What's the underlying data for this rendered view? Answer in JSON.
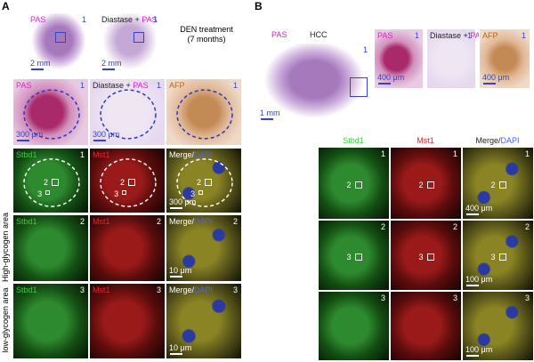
{
  "panel_a": {
    "letter": "A",
    "overview": [
      {
        "stain": "PAS",
        "color": "#e020c8",
        "region": "1",
        "scale": "2 mm"
      },
      {
        "prefix": "Diastase + ",
        "stain": "PAS",
        "color": "#e020c8",
        "region": "1",
        "scale": "2 mm"
      }
    ],
    "treatment": "DEN treatment",
    "duration": "(7 months)",
    "stains": [
      {
        "stain": "PAS",
        "color": "#e020c8",
        "region": "1",
        "scale": "300 μm"
      },
      {
        "prefix": "Diastase + ",
        "stain": "PAS",
        "color": "#e020c8",
        "region": "1",
        "scale": "300 μm"
      },
      {
        "stain": "AFP",
        "color": "#b5651d",
        "region": "1"
      }
    ],
    "fluorescence": [
      [
        {
          "stain": "Stbd1",
          "color": "#39d139",
          "region": "1",
          "marks": [
            "2",
            "3"
          ]
        },
        {
          "stain": "Mst1",
          "color": "#e8262b",
          "marks": [
            "2",
            "3"
          ]
        },
        {
          "prefix": "Merge/",
          "stain": "DAPI",
          "color": "#4a62ff",
          "marks": [
            "2",
            "3"
          ],
          "scale": "300 μm"
        }
      ],
      [
        {
          "stain": "Stbd1",
          "color": "#39d139",
          "region": "2"
        },
        {
          "stain": "Mst1",
          "color": "#e8262b",
          "region": "2"
        },
        {
          "prefix": "Merge/",
          "stain": "DAPI",
          "color": "#4a62ff",
          "region": "2",
          "scale": "10 μm"
        }
      ],
      [
        {
          "stain": "Stbd1",
          "color": "#39d139",
          "region": "3"
        },
        {
          "stain": "Mst1",
          "color": "#e8262b",
          "region": "3"
        },
        {
          "prefix": "Merge/",
          "stain": "DAPI",
          "color": "#4a62ff",
          "region": "3",
          "scale": "10 μm"
        }
      ]
    ],
    "row_labels": [
      "High-glycogen area",
      "low-glycogen area"
    ]
  },
  "panel_b": {
    "letter": "B",
    "overview": {
      "stain": "PAS",
      "color": "#e020c8",
      "title": "HCC",
      "region": "1",
      "scale": "1 mm"
    },
    "stains": [
      {
        "stain": "PAS",
        "color": "#e020c8",
        "region": "1",
        "scale": "400 μm"
      },
      {
        "prefix": "Diastase + ",
        "stain": "PAS",
        "color": "#e020c8",
        "region": "1"
      },
      {
        "stain": "AFP",
        "color": "#b5651d",
        "region": "1",
        "scale": "400 μm"
      }
    ],
    "channels": [
      {
        "stain": "Stbd1",
        "color": "#39d139"
      },
      {
        "stain": "Mst1",
        "color": "#e8262b"
      },
      {
        "prefix": "Merge/",
        "stain": "DAPI",
        "color": "#4a62ff"
      }
    ],
    "fluorescence": [
      [
        {
          "region": "1",
          "marks": [
            "2"
          ]
        },
        {
          "region": "1",
          "marks": [
            "2"
          ]
        },
        {
          "region": "1",
          "marks": [
            "2"
          ],
          "scale": "400 μm"
        }
      ],
      [
        {
          "region": "2",
          "marks": [
            "3"
          ]
        },
        {
          "region": "2",
          "marks": [
            "3"
          ]
        },
        {
          "region": "2",
          "marks": [
            "3"
          ],
          "scale": "100 μm"
        }
      ],
      [
        {
          "region": "3"
        },
        {
          "region": "3"
        },
        {
          "region": "3",
          "scale": "100 μm"
        }
      ]
    ]
  }
}
